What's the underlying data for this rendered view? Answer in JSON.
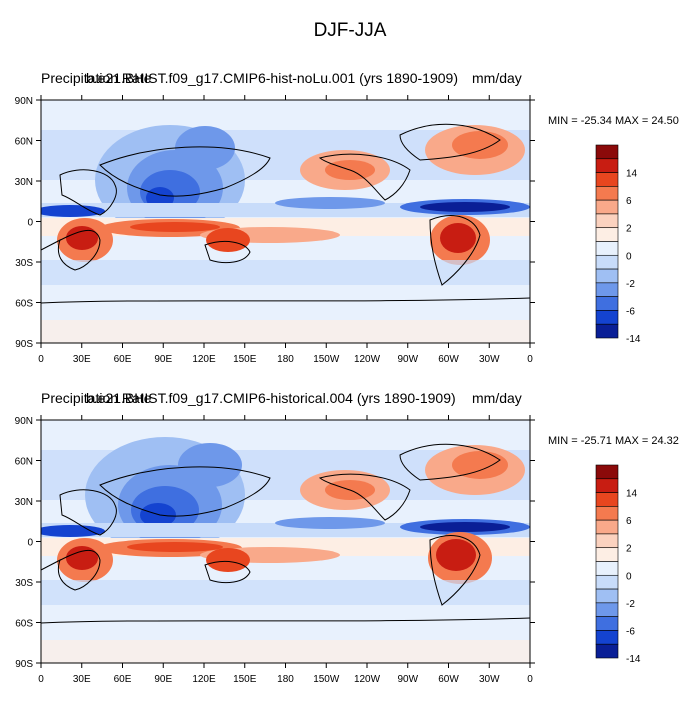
{
  "title": "DJF-JJA",
  "panels": [
    {
      "left_title": "Precipitation Rate",
      "center_title": "b.e21.BHIST.f09_g17.CMIP6-hist-noLu.001 (yrs 1890-1909)",
      "units": "mm/day",
      "min_label": "MIN = -25.34",
      "max_label": "MAX =  24.50"
    },
    {
      "left_title": "Precipitation Rate",
      "center_title": "b.e21.BHIST.f09_g17.CMIP6-historical.004 (yrs 1890-1909)",
      "units": "mm/day",
      "min_label": "MIN = -25.71",
      "max_label": "MAX =  24.32"
    }
  ],
  "lat_ticks": [
    "90N",
    "60N",
    "30N",
    "0",
    "30S",
    "60S",
    "90S"
  ],
  "lon_ticks": [
    "0",
    "30E",
    "60E",
    "90E",
    "120E",
    "150E",
    "180",
    "150W",
    "120W",
    "90W",
    "60W",
    "30W",
    "0"
  ],
  "colorbar": {
    "labels": [
      "14",
      "6",
      "2",
      "0",
      "-2",
      "-6",
      "-14"
    ],
    "colors": [
      "#8b0a0a",
      "#c81d12",
      "#e8461f",
      "#f47a4f",
      "#f9a98a",
      "#fbd2bf",
      "#fdeee4",
      "#e8f1fd",
      "#c8dcfa",
      "#9fbff3",
      "#6e98ea",
      "#3f6fe0",
      "#1443d0",
      "#0a1f96"
    ]
  }
}
